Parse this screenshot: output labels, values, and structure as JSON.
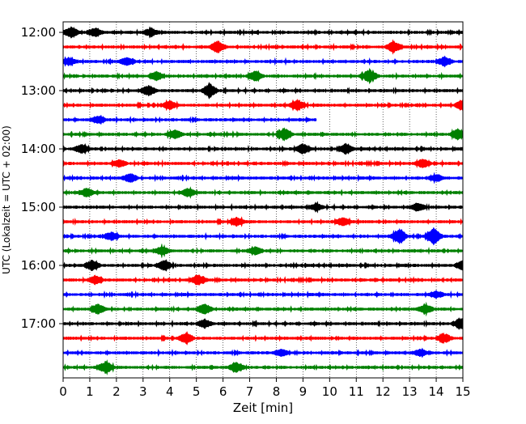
{
  "chart_data": {
    "type": "line",
    "title": "",
    "xlabel": "Zeit  [min]",
    "ylabel": "UTC (Lokalzeit = UTC + 02:00)",
    "xlim": [
      0,
      15
    ],
    "x_ticks": [
      "0",
      "1",
      "2",
      "3",
      "4",
      "5",
      "6",
      "7",
      "8",
      "9",
      "10",
      "11",
      "12",
      "13",
      "14",
      "15"
    ],
    "y_ticks": [
      {
        "label": "12:00",
        "row": 0
      },
      {
        "label": "13:00",
        "row": 4
      },
      {
        "label": "14:00",
        "row": 8
      },
      {
        "label": "15:00",
        "row": 12
      },
      {
        "label": "16:00",
        "row": 16
      },
      {
        "label": "17:00",
        "row": 20
      }
    ],
    "grid": "vertical dotted at each minute",
    "row_interval_minutes": 15,
    "row_colors": [
      "#000000",
      "#ff0000",
      "#0000ff",
      "#008000"
    ],
    "rows": [
      {
        "start": "12:00",
        "color": "#000000",
        "end_min": 15,
        "events": [
          [
            0.3,
            6
          ],
          [
            1.2,
            5
          ],
          [
            3.3,
            5
          ]
        ]
      },
      {
        "start": "12:15",
        "color": "#ff0000",
        "end_min": 15,
        "events": [
          [
            5.8,
            7
          ],
          [
            12.4,
            6
          ]
        ]
      },
      {
        "start": "12:30",
        "color": "#0000ff",
        "end_min": 15,
        "events": [
          [
            0.2,
            4
          ],
          [
            2.4,
            5
          ],
          [
            14.3,
            5
          ]
        ]
      },
      {
        "start": "12:45",
        "color": "#008000",
        "end_min": 15,
        "events": [
          [
            11.5,
            8
          ],
          [
            7.2,
            6
          ],
          [
            3.5,
            5
          ]
        ]
      },
      {
        "start": "13:00",
        "color": "#000000",
        "end_min": 15,
        "events": [
          [
            5.5,
            8
          ],
          [
            3.2,
            6
          ]
        ]
      },
      {
        "start": "13:15",
        "color": "#ff0000",
        "end_min": 15,
        "events": [
          [
            8.8,
            6
          ],
          [
            15,
            7
          ],
          [
            4,
            5
          ]
        ]
      },
      {
        "start": "13:30",
        "color": "#0000ff",
        "end_min": 9.5,
        "events": [
          [
            1.3,
            4
          ]
        ]
      },
      {
        "start": "13:45",
        "color": "#008000",
        "end_min": 15,
        "events": [
          [
            8.3,
            7
          ],
          [
            14.8,
            6
          ],
          [
            4.2,
            5
          ]
        ]
      },
      {
        "start": "14:00",
        "color": "#000000",
        "end_min": 15,
        "events": [
          [
            10.6,
            6
          ],
          [
            9,
            6
          ],
          [
            0.7,
            5
          ]
        ]
      },
      {
        "start": "14:15",
        "color": "#ff0000",
        "end_min": 15,
        "events": [
          [
            2.1,
            4
          ],
          [
            13.5,
            5
          ]
        ]
      },
      {
        "start": "14:30",
        "color": "#0000ff",
        "end_min": 15,
        "events": [
          [
            2.5,
            5
          ],
          [
            14,
            4
          ]
        ]
      },
      {
        "start": "14:45",
        "color": "#008000",
        "end_min": 15,
        "events": [
          [
            0.9,
            5
          ],
          [
            4.7,
            5
          ]
        ]
      },
      {
        "start": "15:00",
        "color": "#000000",
        "end_min": 15,
        "events": [
          [
            13.3,
            5
          ],
          [
            9.5,
            4
          ]
        ]
      },
      {
        "start": "15:15",
        "color": "#ff0000",
        "end_min": 15,
        "events": [
          [
            6.5,
            5
          ],
          [
            10.5,
            5
          ]
        ]
      },
      {
        "start": "15:30",
        "color": "#0000ff",
        "end_min": 15,
        "events": [
          [
            12.6,
            9
          ],
          [
            13.9,
            10
          ],
          [
            1.8,
            5
          ]
        ]
      },
      {
        "start": "15:45",
        "color": "#008000",
        "end_min": 15,
        "events": [
          [
            3.7,
            5
          ],
          [
            7.2,
            5
          ]
        ]
      },
      {
        "start": "16:00",
        "color": "#000000",
        "end_min": 15,
        "events": [
          [
            1.1,
            6
          ],
          [
            3.8,
            6
          ],
          [
            15,
            6
          ]
        ]
      },
      {
        "start": "16:15",
        "color": "#ff0000",
        "end_min": 15,
        "events": [
          [
            1.2,
            5
          ],
          [
            5.1,
            6
          ]
        ]
      },
      {
        "start": "16:30",
        "color": "#0000ff",
        "end_min": 15,
        "events": [
          [
            14,
            4
          ]
        ]
      },
      {
        "start": "16:45",
        "color": "#008000",
        "end_min": 15,
        "events": [
          [
            1.3,
            6
          ],
          [
            5.3,
            6
          ],
          [
            13.6,
            6
          ]
        ]
      },
      {
        "start": "17:00",
        "color": "#000000",
        "end_min": 15,
        "events": [
          [
            14.9,
            6
          ],
          [
            5.3,
            5
          ]
        ]
      },
      {
        "start": "17:15",
        "color": "#ff0000",
        "end_min": 15,
        "events": [
          [
            4.6,
            6
          ],
          [
            14.3,
            5
          ]
        ]
      },
      {
        "start": "17:30",
        "color": "#0000ff",
        "end_min": 15,
        "events": [
          [
            8.2,
            4
          ],
          [
            13.4,
            4
          ]
        ]
      },
      {
        "start": "17:45",
        "color": "#008000",
        "end_min": 15,
        "events": [
          [
            1.6,
            7
          ],
          [
            6.5,
            6
          ]
        ]
      }
    ]
  }
}
